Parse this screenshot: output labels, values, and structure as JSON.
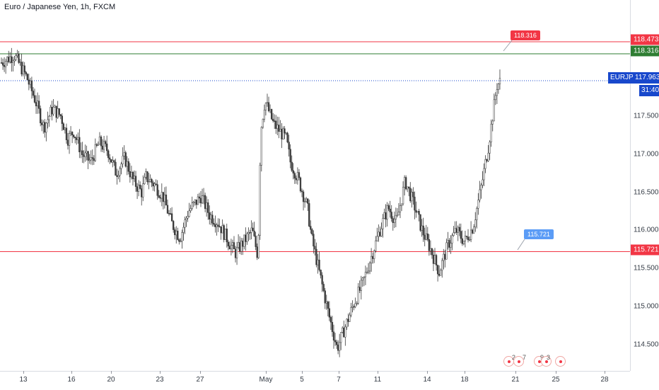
{
  "header": {
    "title": "Euro / Japanese Yen, 1h, FXCM"
  },
  "price_axis": {
    "ticks": [
      "117.500",
      "117.000",
      "116.500",
      "116.000",
      "115.500",
      "115.000",
      "114.500"
    ]
  },
  "time_axis": {
    "ticks": [
      "13",
      "16",
      "20",
      "23",
      "27",
      "May",
      "5",
      "7",
      "11",
      "14",
      "18",
      "21",
      "25",
      "28"
    ]
  },
  "levels": {
    "resistance": {
      "value": "118.473",
      "color": "#f23645"
    },
    "green": {
      "value": "118.316",
      "color": "#2e7d32"
    },
    "support": {
      "value": "115.721",
      "color": "#f23645"
    },
    "current": {
      "symbol": "EURJPY",
      "value": "117.963",
      "countdown": "31:40",
      "color": "#1848cc"
    }
  },
  "callouts": {
    "top": {
      "label": "118.316",
      "color": "#f23645"
    },
    "bottom": {
      "label": "115.721",
      "color": "#5b9cf6"
    }
  },
  "events": {
    "labels": [
      "2",
      "7",
      "9",
      "3"
    ]
  },
  "chart_data": {
    "type": "candlestick",
    "instrument": "EURJPY",
    "timeframe": "1h",
    "source": "FXCM",
    "ylim": [
      114.2,
      118.65
    ],
    "horizontal_lines": [
      118.473,
      118.316,
      115.721
    ],
    "last_price": 117.963,
    "path": [
      [
        0,
        118.2
      ],
      [
        1.5,
        118.3
      ],
      [
        3,
        118.0
      ],
      [
        4,
        117.7
      ],
      [
        5,
        117.35
      ],
      [
        6,
        117.6
      ],
      [
        7,
        117.5
      ],
      [
        7.8,
        117.2
      ],
      [
        8.5,
        117.3
      ],
      [
        9.5,
        117.0
      ],
      [
        10.5,
        116.9
      ],
      [
        11.5,
        117.15
      ],
      [
        12.5,
        117.05
      ],
      [
        13.5,
        116.75
      ],
      [
        14.5,
        116.95
      ],
      [
        15.5,
        116.65
      ],
      [
        16.5,
        116.5
      ],
      [
        17,
        116.7
      ],
      [
        18,
        116.6
      ],
      [
        19,
        116.45
      ],
      [
        20,
        116.1
      ],
      [
        21,
        115.9
      ],
      [
        22,
        116.25
      ],
      [
        23.5,
        116.45
      ],
      [
        24.5,
        116.2
      ],
      [
        25.5,
        116.1
      ],
      [
        26.5,
        115.9
      ],
      [
        27.5,
        115.7
      ],
      [
        28.5,
        115.85
      ],
      [
        29.5,
        116.0
      ],
      [
        30.2,
        115.65
      ],
      [
        30.5,
        117.3
      ],
      [
        31,
        117.7
      ],
      [
        32,
        117.4
      ],
      [
        33.5,
        117.2
      ],
      [
        34,
        116.9
      ],
      [
        35,
        116.65
      ],
      [
        36,
        116.3
      ],
      [
        36.5,
        115.9
      ],
      [
        37.5,
        115.4
      ],
      [
        38.5,
        114.9
      ],
      [
        39.5,
        114.45
      ],
      [
        40.5,
        114.75
      ],
      [
        41.5,
        115.05
      ],
      [
        42.5,
        115.3
      ],
      [
        43.5,
        115.65
      ],
      [
        44.5,
        116.0
      ],
      [
        45.5,
        116.3
      ],
      [
        46.5,
        116.1
      ],
      [
        47.5,
        116.65
      ],
      [
        48.5,
        116.35
      ],
      [
        49.5,
        116.0
      ],
      [
        50.5,
        115.75
      ],
      [
        51.5,
        115.45
      ],
      [
        52.5,
        115.8
      ],
      [
        53.5,
        116.0
      ],
      [
        54.5,
        115.85
      ],
      [
        55.5,
        116.05
      ],
      [
        56.5,
        116.6
      ],
      [
        57.3,
        117.1
      ],
      [
        57.8,
        117.5
      ],
      [
        58.3,
        117.9
      ],
      [
        58.8,
        117.963
      ]
    ]
  }
}
